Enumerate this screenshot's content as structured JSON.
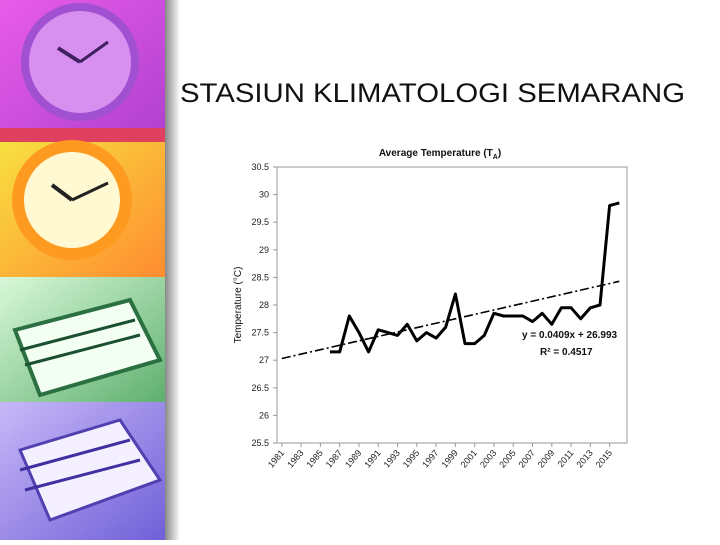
{
  "slide": {
    "heading": "STASIUN  KLIMATOLOGI SEMARANG"
  },
  "chart_data": {
    "type": "line",
    "title": [
      "Average Temperature (T",
      "A",
      ")"
    ],
    "y_label": "Temperature (°C)",
    "xlim": [
      1980.5,
      2016.8
    ],
    "xticks": [
      1981,
      1983,
      1985,
      1987,
      1989,
      1991,
      1993,
      1995,
      1997,
      1999,
      2001,
      2003,
      2005,
      2007,
      2009,
      2011,
      2013,
      2015
    ],
    "ylim": [
      25.5,
      30.5
    ],
    "yticks": [
      25.5,
      26,
      26.5,
      27,
      27.5,
      28,
      28.5,
      29,
      29.5,
      30,
      30.5
    ],
    "grid": false,
    "series": [
      {
        "color": "#000000",
        "style": "solid",
        "x": [
          1986,
          1987,
          1988,
          1989,
          1990,
          1991,
          1992,
          1993,
          1994,
          1995,
          1996,
          1997,
          1998,
          1999,
          2000,
          2001,
          2002,
          2003,
          2004,
          2005,
          2006,
          2007,
          2008,
          2009,
          2010,
          2011,
          2012,
          2013,
          2014,
          2015,
          2016
        ],
        "values": [
          27.15,
          27.15,
          27.8,
          27.5,
          27.15,
          27.55,
          27.5,
          27.45,
          27.65,
          27.35,
          27.5,
          27.4,
          27.6,
          28.2,
          27.3,
          27.3,
          27.45,
          27.85,
          27.8,
          27.8,
          27.8,
          27.7,
          27.85,
          27.65,
          27.95,
          27.95,
          27.75,
          27.95,
          28.0,
          29.8,
          29.85
        ]
      },
      {
        "color": "#000000",
        "style": "dashdot",
        "x": [
          1981,
          2016
        ],
        "values": [
          27.03,
          28.43
        ]
      }
    ],
    "annotations": [
      "y = 0.0409x + 26.993",
      "R² = 0.4517"
    ]
  }
}
